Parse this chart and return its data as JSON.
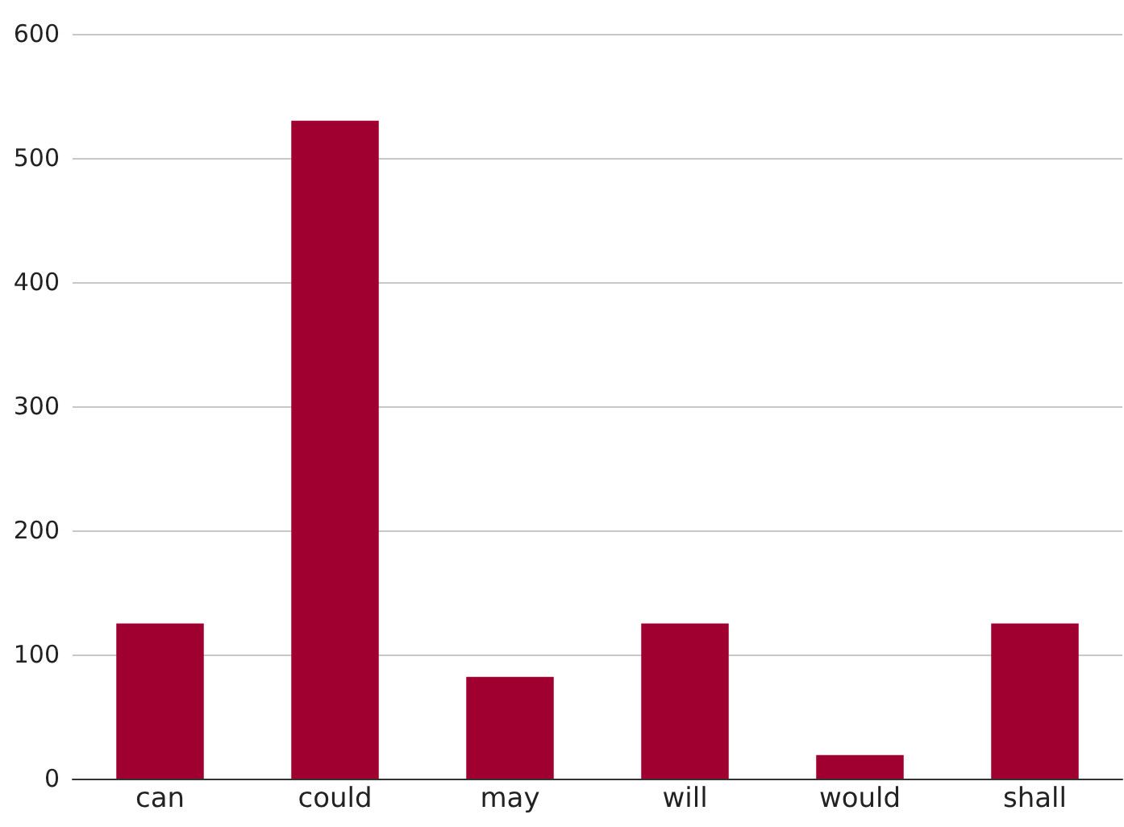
{
  "chart_data": {
    "type": "bar",
    "categories": [
      "can",
      "could",
      "may",
      "will",
      "would",
      "shall"
    ],
    "values": [
      125,
      530,
      82,
      125,
      19,
      125
    ],
    "color": "#a0002f",
    "ylim": [
      0,
      600
    ],
    "yticks": [
      0,
      100,
      200,
      300,
      400,
      500,
      600
    ],
    "grid": "y"
  }
}
